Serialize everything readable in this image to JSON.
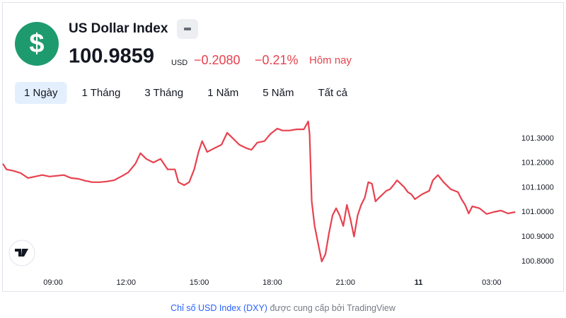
{
  "header": {
    "title": "US Dollar Index",
    "price": "100.9859",
    "currency": "USD",
    "change": "−0.2080",
    "change_percent": "−0.21%",
    "period": "Hôm nay"
  },
  "tabs": [
    "1 Ngày",
    "1 Tháng",
    "3 Tháng",
    "1 Năm",
    "5 Năm",
    "Tất cả"
  ],
  "active_tab": 0,
  "chart_data": {
    "type": "line",
    "x": [
      6.941,
      7.088,
      7.382,
      7.676,
      7.971,
      8.265,
      8.559,
      8.853,
      9.147,
      9.441,
      9.735,
      10.029,
      10.324,
      10.618,
      10.912,
      11.206,
      11.5,
      11.794,
      12.088,
      12.382,
      12.588,
      12.824,
      13.118,
      13.412,
      13.706,
      14.0,
      14.147,
      14.382,
      14.588,
      14.794,
      14.971,
      15.118,
      15.324,
      15.618,
      15.912,
      16.147,
      16.353,
      16.647,
      16.941,
      17.147,
      17.382,
      17.676,
      17.912,
      18.206,
      18.412,
      18.706,
      19.0,
      19.294,
      19.471,
      19.529,
      19.618,
      19.735,
      19.882,
      20.029,
      20.176,
      20.324,
      20.471,
      20.618,
      20.765,
      20.912,
      21.059,
      21.206,
      21.353,
      21.5,
      21.647,
      21.794,
      21.941,
      22.088,
      22.235,
      22.382,
      22.529,
      22.676,
      22.824,
      22.971,
      23.118,
      23.265,
      23.412,
      23.559,
      23.706,
      23.853,
      24.147,
      24.441,
      24.588,
      24.794,
      25.029,
      25.324,
      25.618,
      25.765,
      25.912,
      26.059,
      26.206,
      26.5,
      26.794,
      27.088,
      27.382,
      27.676,
      27.971
    ],
    "series": [
      {
        "color": "#e8414e",
        "values": [
          101.197,
          101.174,
          101.168,
          101.159,
          101.139,
          101.145,
          101.151,
          101.145,
          101.148,
          101.151,
          101.139,
          101.136,
          101.128,
          101.122,
          101.122,
          101.125,
          101.13,
          101.145,
          101.162,
          101.197,
          101.24,
          101.217,
          101.202,
          101.217,
          101.174,
          101.174,
          101.122,
          101.11,
          101.122,
          101.174,
          101.245,
          101.289,
          101.245,
          101.26,
          101.274,
          101.323,
          101.303,
          101.274,
          101.26,
          101.254,
          101.283,
          101.289,
          101.317,
          101.34,
          101.332,
          101.332,
          101.337,
          101.337,
          101.369,
          101.317,
          101.044,
          100.944,
          100.872,
          100.8,
          100.829,
          100.915,
          100.987,
          101.016,
          100.987,
          100.944,
          101.03,
          100.972,
          100.901,
          100.987,
          101.03,
          101.059,
          101.122,
          101.116,
          101.044,
          101.059,
          101.073,
          101.087,
          101.093,
          101.11,
          101.13,
          101.116,
          101.102,
          101.082,
          101.073,
          101.053,
          101.073,
          101.087,
          101.13,
          101.151,
          101.122,
          101.093,
          101.082,
          101.053,
          101.03,
          100.995,
          101.024,
          101.016,
          100.993,
          101.001,
          101.007,
          100.995,
          101.001
        ]
      }
    ],
    "xlim": [
      6.91,
      28.02
    ],
    "xticks": [
      {
        "value": 9,
        "label": "09:00"
      },
      {
        "value": 12,
        "label": "12:00"
      },
      {
        "value": 15,
        "label": "15:00"
      },
      {
        "value": 18,
        "label": "18:00"
      },
      {
        "value": 21,
        "label": "21:00"
      },
      {
        "value": 24,
        "label": "11"
      },
      {
        "value": 27,
        "label": "03:00"
      }
    ],
    "ylim": [
      100.685,
      101.403
    ],
    "yticks": [
      {
        "value": 100.8,
        "label": "100.8000"
      },
      {
        "value": 100.9,
        "label": "100.9000"
      },
      {
        "value": 101.0,
        "label": "101.0000"
      },
      {
        "value": 101.1,
        "label": "101.1000"
      },
      {
        "value": 101.2,
        "label": "101.2000"
      },
      {
        "value": 101.3,
        "label": "101.3000"
      }
    ]
  },
  "footer": {
    "link": "Chỉ số USD Index (DXY)",
    "text": "được cung cấp bởi TradingView"
  }
}
